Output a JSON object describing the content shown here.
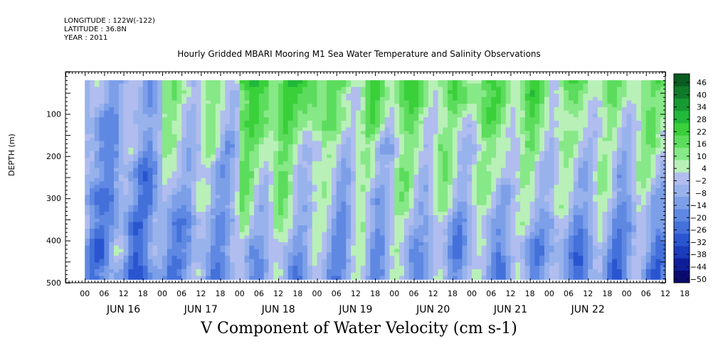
{
  "header": {
    "longitude": "LONGITUDE : 122W(-122)",
    "latitude": "LATITUDE : 36.8N",
    "year": "YEAR : 2011"
  },
  "chart_data": {
    "type": "heatmap",
    "title": "Hourly Gridded MBARI Mooring M1 Sea Water Temperature and Salinity Observations",
    "xlabel": "V Component of Water Velocity (cm s-1)",
    "ylabel": "DEPTH (m)",
    "x_hour_ticks": [
      "00",
      "06",
      "12",
      "18",
      "00",
      "06",
      "12",
      "18",
      "00",
      "06",
      "12",
      "18",
      "00",
      "06",
      "12",
      "18",
      "00",
      "06",
      "12",
      "18",
      "00",
      "06",
      "12",
      "18",
      "00",
      "06",
      "12",
      "18",
      "00",
      "06",
      "12",
      "18"
    ],
    "x_day_labels": [
      "JUN 16",
      "JUN 17",
      "JUN 18",
      "JUN 19",
      "JUN 20",
      "JUN 21",
      "JUN 22"
    ],
    "xlim_hours_from_jun16_0000": [
      -6,
      180
    ],
    "data_extent_hours": [
      0,
      180
    ],
    "y_ticks": [
      100,
      200,
      300,
      400,
      500
    ],
    "ylim": [
      500,
      0
    ],
    "data_depth_range": [
      20,
      485
    ],
    "colorbar": {
      "levels": [
        -50,
        -44,
        -38,
        -32,
        -26,
        -20,
        -14,
        -8,
        -2,
        4,
        10,
        16,
        22,
        28,
        34,
        40,
        46
      ],
      "label_values": [
        46,
        40,
        34,
        28,
        22,
        16,
        10,
        4,
        -2,
        -8,
        -14,
        -20,
        -26,
        -32,
        -38,
        -44,
        -50
      ],
      "colors": [
        "#0a0a6e",
        "#0e1e99",
        "#1a3bbb",
        "#2a55d0",
        "#4470da",
        "#5f88e2",
        "#7c9fe8",
        "#98b2ec",
        "#b0bdee",
        "#b8f0b8",
        "#86e886",
        "#5cdc5c",
        "#3ad03a",
        "#22b83a",
        "#189a33",
        "#0f7a2a",
        "#0a5c20"
      ]
    },
    "series_description": {
      "type": "field",
      "v_surface_mean_by_day": [
        {
          "day": "JUN 16",
          "upper_v": -4,
          "deep_v": -14
        },
        {
          "day": "JUN 17",
          "upper_v": 8,
          "deep_v": -12
        },
        {
          "day": "JUN 18",
          "upper_v": 22,
          "deep_v": -6
        },
        {
          "day": "JUN 19",
          "upper_v": 14,
          "deep_v": -10
        },
        {
          "day": "JUN 20",
          "upper_v": 16,
          "deep_v": -8
        },
        {
          "day": "JUN 21",
          "upper_v": 18,
          "deep_v": -10
        },
        {
          "day": "JUN 22",
          "upper_v": 14,
          "deep_v": -12
        }
      ]
    }
  },
  "colors": {
    "background": "#ffffff",
    "axis": "#000000"
  }
}
